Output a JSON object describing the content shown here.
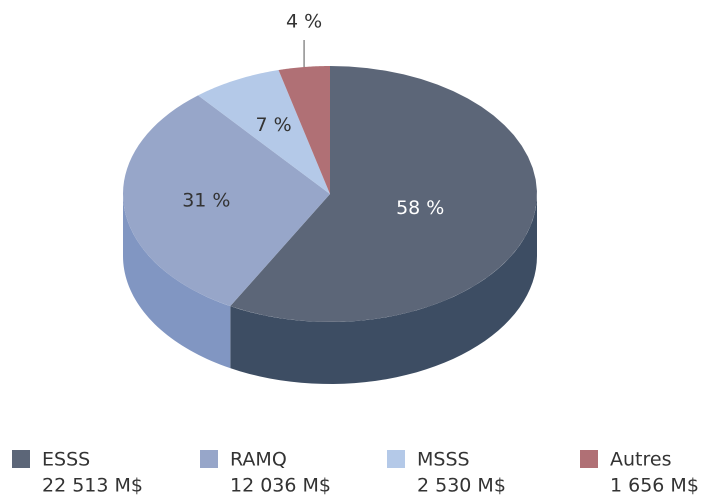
{
  "chart_data": {
    "type": "pie",
    "categories": [
      "ESSS",
      "RAMQ",
      "MSSS",
      "Autres"
    ],
    "values": [
      58,
      31,
      7,
      4
    ],
    "value_labels": [
      "58 %",
      "31 %",
      "7 %",
      "4 %"
    ],
    "amounts": [
      22513,
      12036,
      2530,
      1656
    ],
    "amount_labels": [
      "22 513 M$",
      "12 036 M$",
      "2 530 M$",
      "1 656 M$"
    ],
    "colors": [
      "#5c6678",
      "#97a6c9",
      "#b4c9e8",
      "#b07075"
    ],
    "side_colors": [
      "#3d4d63",
      "#8196c2",
      "#a3b8da",
      "#96585d"
    ],
    "label_colors": [
      "#ffffff",
      "#333333",
      "#333333",
      "#333333"
    ]
  }
}
